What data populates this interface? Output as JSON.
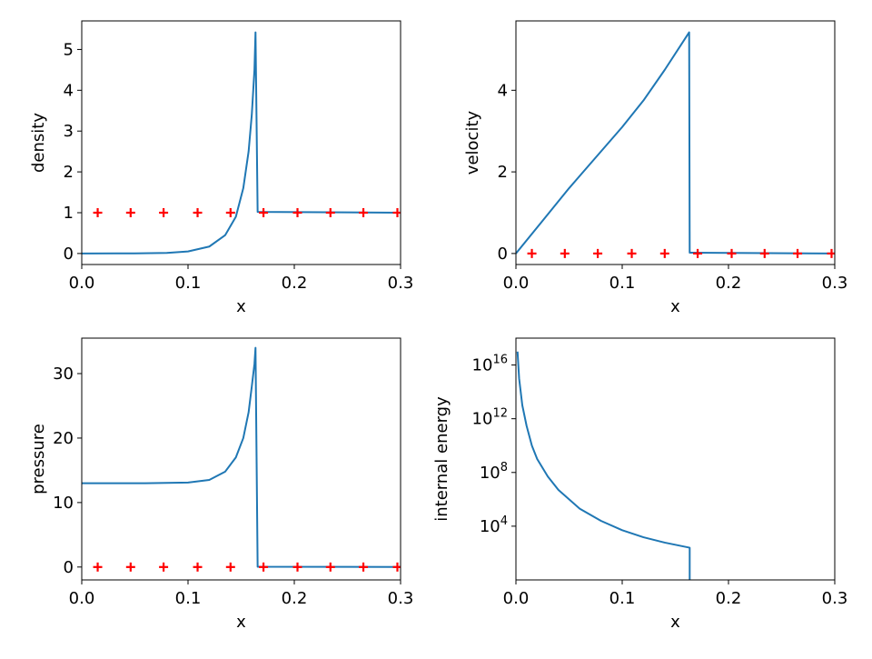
{
  "colors": {
    "line": "#1f77b4",
    "marker": "#ff0000",
    "frame": "#000000"
  },
  "chart_data": [
    {
      "type": "line",
      "xlabel": "x",
      "ylabel": "density",
      "xlim": [
        0,
        0.3
      ],
      "ylim": [
        -0.27,
        5.7
      ],
      "xticks": [
        0,
        0.1,
        0.2,
        0.3
      ],
      "xtick_labels": [
        "0.0",
        "0.1",
        "0.2",
        "0.3"
      ],
      "yticks": [
        0,
        1,
        2,
        3,
        4,
        5
      ],
      "ytick_labels": [
        "0",
        "1",
        "2",
        "3",
        "4",
        "5"
      ],
      "series": [
        {
          "kind": "line",
          "points": [
            [
              0,
              0
            ],
            [
              0.05,
              0.003
            ],
            [
              0.08,
              0.015
            ],
            [
              0.1,
              0.05
            ],
            [
              0.12,
              0.17
            ],
            [
              0.135,
              0.45
            ],
            [
              0.145,
              0.9
            ],
            [
              0.152,
              1.6
            ],
            [
              0.157,
              2.5
            ],
            [
              0.16,
              3.4
            ],
            [
              0.1625,
              4.5
            ],
            [
              0.1635,
              5.42
            ],
            [
              0.1655,
              1.02
            ],
            [
              0.3,
              1.0
            ]
          ]
        },
        {
          "kind": "marker",
          "points": [
            [
              0.015,
              1
            ],
            [
              0.046,
              1
            ],
            [
              0.077,
              1
            ],
            [
              0.109,
              1
            ],
            [
              0.14,
              1
            ],
            [
              0.171,
              1
            ],
            [
              0.203,
              1
            ],
            [
              0.234,
              1
            ],
            [
              0.265,
              1
            ],
            [
              0.297,
              1
            ]
          ]
        }
      ]
    },
    {
      "type": "line",
      "xlabel": "x",
      "ylabel": "velocity",
      "xlim": [
        0,
        0.3
      ],
      "ylim": [
        -0.27,
        5.7
      ],
      "xticks": [
        0,
        0.1,
        0.2,
        0.3
      ],
      "xtick_labels": [
        "0.0",
        "0.1",
        "0.2",
        "0.3"
      ],
      "yticks": [
        0,
        2,
        4
      ],
      "ytick_labels": [
        "0",
        "2",
        "4"
      ],
      "series": [
        {
          "kind": "line",
          "points": [
            [
              0,
              0
            ],
            [
              0.025,
              0.8
            ],
            [
              0.05,
              1.6
            ],
            [
              0.075,
              2.35
            ],
            [
              0.1,
              3.1
            ],
            [
              0.12,
              3.75
            ],
            [
              0.14,
              4.5
            ],
            [
              0.155,
              5.1
            ],
            [
              0.163,
              5.42
            ],
            [
              0.1635,
              0.02
            ],
            [
              0.3,
              0.0
            ]
          ]
        },
        {
          "kind": "marker",
          "points": [
            [
              0.015,
              0
            ],
            [
              0.046,
              0
            ],
            [
              0.077,
              0
            ],
            [
              0.109,
              0
            ],
            [
              0.14,
              0
            ],
            [
              0.171,
              0
            ],
            [
              0.203,
              0
            ],
            [
              0.234,
              0
            ],
            [
              0.265,
              0
            ],
            [
              0.297,
              0
            ]
          ]
        }
      ]
    },
    {
      "type": "line",
      "xlabel": "x",
      "ylabel": "pressure",
      "xlim": [
        0,
        0.3
      ],
      "ylim": [
        -2,
        35.5
      ],
      "xticks": [
        0,
        0.1,
        0.2,
        0.3
      ],
      "xtick_labels": [
        "0.0",
        "0.1",
        "0.2",
        "0.3"
      ],
      "yticks": [
        0,
        10,
        20,
        30
      ],
      "ytick_labels": [
        "0",
        "10",
        "20",
        "30"
      ],
      "series": [
        {
          "kind": "line",
          "points": [
            [
              0,
              13
            ],
            [
              0.06,
              13
            ],
            [
              0.1,
              13.1
            ],
            [
              0.12,
              13.5
            ],
            [
              0.135,
              14.8
            ],
            [
              0.145,
              17
            ],
            [
              0.152,
              20
            ],
            [
              0.157,
              24
            ],
            [
              0.16,
              28
            ],
            [
              0.1625,
              31.5
            ],
            [
              0.1635,
              34
            ],
            [
              0.1655,
              0.05
            ],
            [
              0.3,
              0
            ]
          ]
        },
        {
          "kind": "marker",
          "points": [
            [
              0.015,
              0
            ],
            [
              0.046,
              0
            ],
            [
              0.077,
              0
            ],
            [
              0.109,
              0
            ],
            [
              0.14,
              0
            ],
            [
              0.171,
              0
            ],
            [
              0.203,
              0
            ],
            [
              0.234,
              0
            ],
            [
              0.265,
              0
            ],
            [
              0.297,
              0
            ]
          ]
        }
      ]
    },
    {
      "type": "line",
      "xlabel": "x",
      "ylabel": "internal energy",
      "xlim": [
        0,
        0.3
      ],
      "ylim": [
        1,
        1e+18
      ],
      "yscale": "log",
      "xticks": [
        0,
        0.1,
        0.2,
        0.3
      ],
      "xtick_labels": [
        "0.0",
        "0.1",
        "0.2",
        "0.3"
      ],
      "yticks": [
        10000,
        100000000,
        1000000000000,
        10000000000000000
      ],
      "ytick_base": [
        "10",
        "10",
        "10",
        "10"
      ],
      "ytick_exp": [
        "4",
        "8",
        "12",
        "16"
      ],
      "series": [
        {
          "kind": "line",
          "points": [
            [
              0.0015,
              1e+17
            ],
            [
              0.003,
              1000000000000000.0
            ],
            [
              0.006,
              10000000000000.0
            ],
            [
              0.01,
              300000000000.0
            ],
            [
              0.015,
              10000000000.0
            ],
            [
              0.02,
              1000000000.0
            ],
            [
              0.03,
              50000000.0
            ],
            [
              0.04,
              5000000.0
            ],
            [
              0.06,
              200000.0
            ],
            [
              0.08,
              25000
            ],
            [
              0.1,
              5000
            ],
            [
              0.12,
              1500
            ],
            [
              0.14,
              600
            ],
            [
              0.1635,
              250
            ],
            [
              0.1635,
              1
            ]
          ]
        }
      ]
    }
  ]
}
